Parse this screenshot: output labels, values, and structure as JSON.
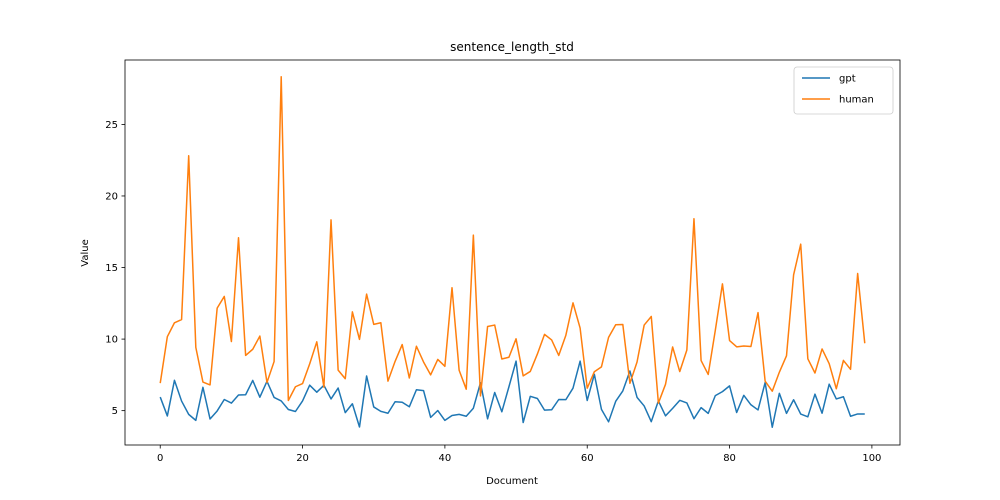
{
  "chart_data": {
    "type": "line",
    "title": "sentence_length_std",
    "xlabel": "Document",
    "ylabel": "Value",
    "xlim": [
      -4.95,
      103.95
    ],
    "ylim": [
      2.6,
      29.5
    ],
    "xticks": [
      0,
      20,
      40,
      60,
      80,
      100
    ],
    "yticks": [
      5,
      10,
      15,
      20,
      25
    ],
    "grid": false,
    "legend_position": "top-right",
    "series": [
      {
        "name": "gpt",
        "color": "#1f77b4",
        "values": [
          5.95,
          4.63,
          7.12,
          5.67,
          4.74,
          4.32,
          6.63,
          4.42,
          4.98,
          5.78,
          5.53,
          6.09,
          6.11,
          7.11,
          5.94,
          7.05,
          5.92,
          5.68,
          5.08,
          4.94,
          5.68,
          6.78,
          6.29,
          6.77,
          5.82,
          6.58,
          4.86,
          5.48,
          3.86,
          7.42,
          5.26,
          4.95,
          4.82,
          5.62,
          5.59,
          5.27,
          6.46,
          6.4,
          4.53,
          5.01,
          4.32,
          4.66,
          4.74,
          4.61,
          5.17,
          6.95,
          4.43,
          6.27,
          4.92,
          6.67,
          8.46,
          4.17,
          6.0,
          5.85,
          5.04,
          5.06,
          5.78,
          5.77,
          6.57,
          8.46,
          5.71,
          7.54,
          5.09,
          4.22,
          5.65,
          6.38,
          7.77,
          5.93,
          5.33,
          4.23,
          5.68,
          4.64,
          5.16,
          5.72,
          5.54,
          4.44,
          5.21,
          4.81,
          6.05,
          6.33,
          6.73,
          4.87,
          6.07,
          5.41,
          5.05,
          6.96,
          3.84,
          6.21,
          4.81,
          5.76,
          4.76,
          4.57,
          6.15,
          4.82,
          6.85,
          5.82,
          5.97,
          4.61,
          4.77,
          4.77
        ]
      },
      {
        "name": "human",
        "color": "#ff7f0e",
        "values": [
          6.92,
          10.17,
          11.14,
          11.36,
          22.81,
          9.42,
          7.0,
          6.8,
          12.16,
          12.98,
          9.83,
          17.08,
          8.86,
          9.29,
          10.21,
          6.97,
          8.43,
          28.33,
          5.71,
          6.67,
          6.89,
          8.27,
          9.81,
          6.64,
          18.33,
          7.83,
          7.23,
          11.9,
          9.98,
          13.14,
          11.03,
          11.14,
          7.06,
          8.44,
          9.62,
          7.28,
          9.5,
          8.4,
          7.5,
          8.58,
          8.1,
          13.59,
          7.82,
          6.5,
          17.26,
          6.03,
          10.88,
          10.98,
          8.61,
          8.73,
          10.02,
          7.43,
          7.74,
          8.96,
          10.33,
          9.94,
          8.86,
          10.27,
          12.53,
          10.77,
          6.57,
          7.72,
          8.06,
          10.12,
          11.0,
          11.02,
          6.91,
          8.4,
          10.98,
          11.58,
          5.53,
          6.84,
          9.45,
          7.73,
          9.24,
          18.41,
          8.5,
          7.53,
          10.62,
          13.86,
          9.9,
          9.46,
          9.52,
          9.48,
          11.85,
          7.06,
          6.36,
          7.69,
          8.83,
          14.49,
          16.63,
          8.62,
          7.63,
          9.31,
          8.28,
          6.53,
          8.51,
          7.89,
          14.58,
          9.71
        ]
      }
    ]
  }
}
